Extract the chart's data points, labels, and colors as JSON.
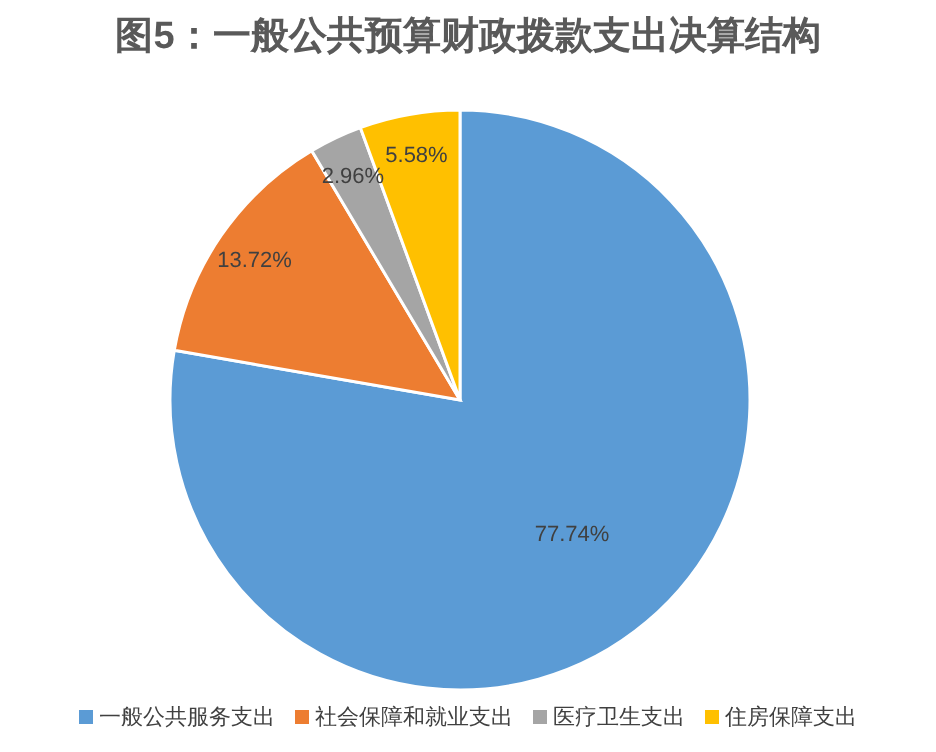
{
  "chart_data": {
    "type": "pie",
    "title": "图5：一般公共预算财政拨款支出决算结构",
    "categories": [
      "一般公共服务支出",
      "社会保障和就业支出",
      "医疗卫生支出",
      "住房保障支出"
    ],
    "values": [
      77.74,
      13.72,
      2.96,
      5.58
    ],
    "colors": [
      "#5b9bd5",
      "#ed7d31",
      "#a5a5a5",
      "#ffc000"
    ],
    "value_labels": [
      "77.74%",
      "13.72%",
      "2.96%",
      "5.58%"
    ],
    "legend": "bottom"
  }
}
